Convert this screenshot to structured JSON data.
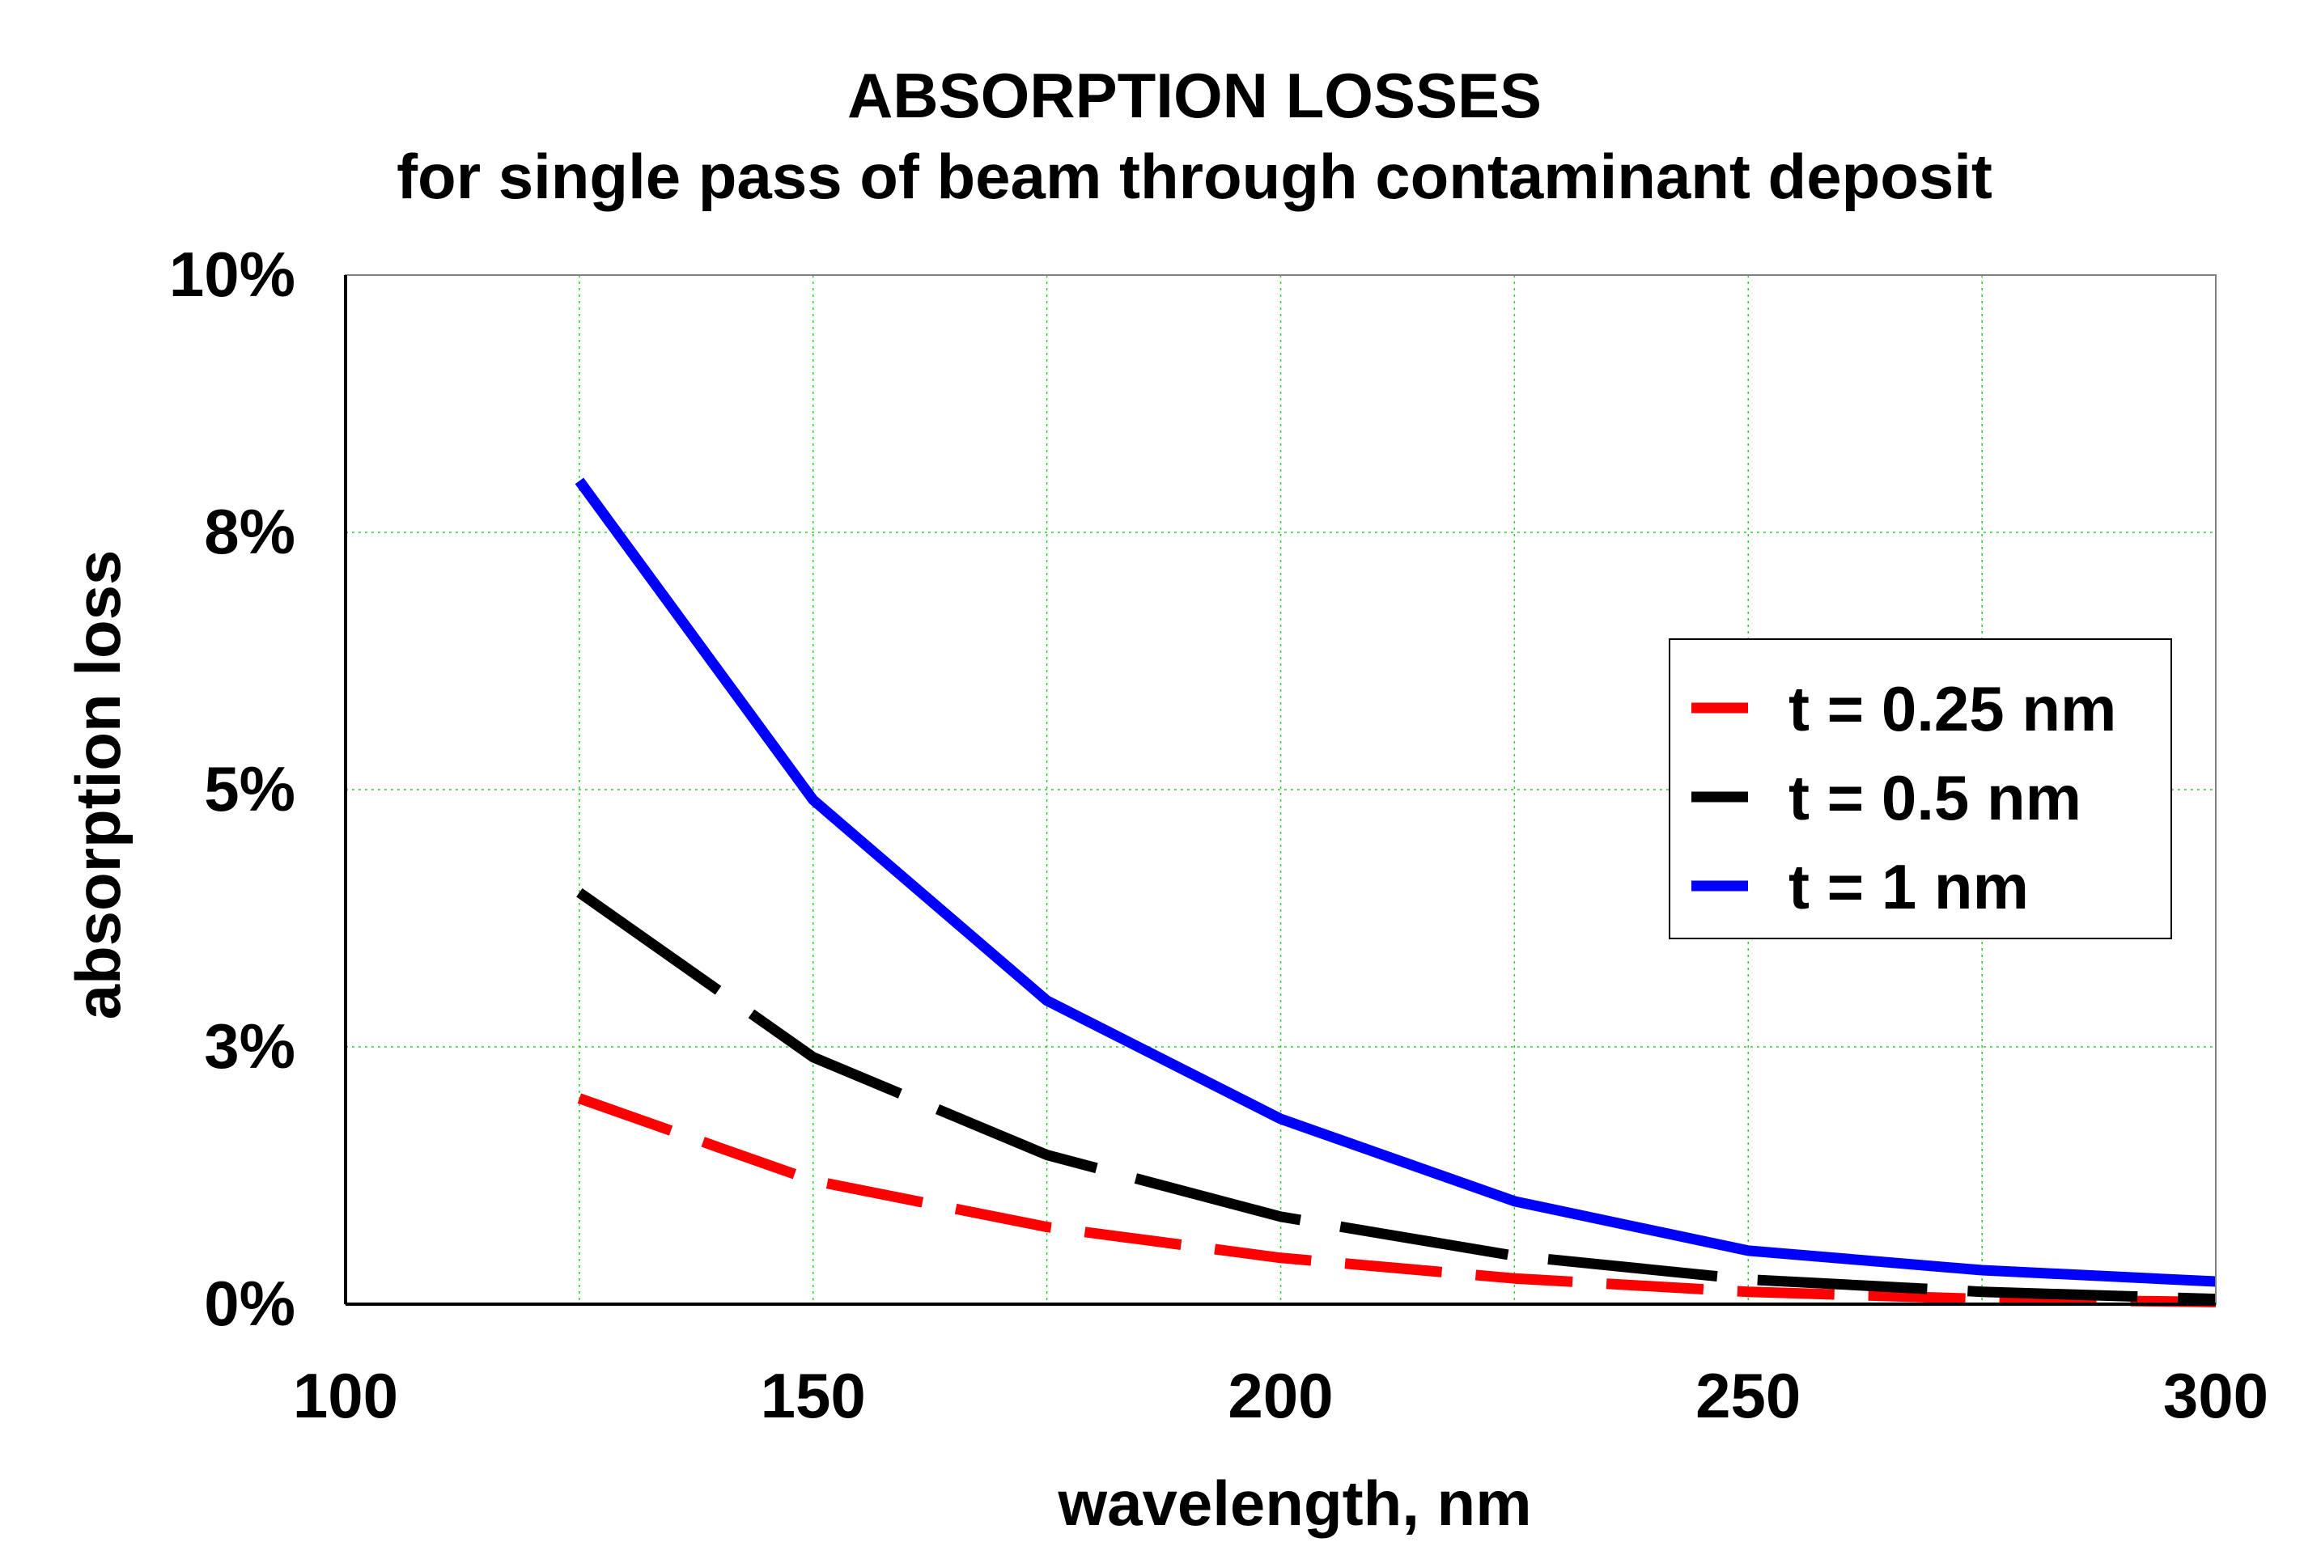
{
  "chart_data": {
    "type": "line",
    "title": "ABSORPTION LOSSES",
    "subtitle": "for single pass of beam through contaminant deposit",
    "xlabel": "wavelength, nm",
    "ylabel": "absorption loss",
    "xlim": [
      100,
      300
    ],
    "ylim": [
      0,
      10
    ],
    "x_ticks": [
      100,
      150,
      200,
      250,
      300
    ],
    "x_tick_labels": [
      "100",
      "150",
      "200",
      "250",
      "300"
    ],
    "y_ticks": [
      0,
      2.5,
      5,
      7.5,
      10
    ],
    "y_tick_labels": [
      "0%",
      "3%",
      "5%",
      "8%",
      "10%"
    ],
    "grid": true,
    "legend_position": "right",
    "x": [
      125,
      150,
      175,
      200,
      225,
      250,
      275,
      300
    ],
    "series": [
      {
        "name": "t = 0.25 nm",
        "color": "#ff0000",
        "style": "dashed",
        "values": [
          2.0,
          1.2,
          0.75,
          0.45,
          0.25,
          0.12,
          0.05,
          0.02
        ]
      },
      {
        "name": "t = 0.5 nm",
        "color": "#000000",
        "style": "dashed",
        "values": [
          4.0,
          2.4,
          1.45,
          0.85,
          0.47,
          0.24,
          0.12,
          0.05
        ]
      },
      {
        "name": "t = 1 nm",
        "color": "#0000ff",
        "style": "solid",
        "values": [
          8.0,
          4.9,
          2.95,
          1.8,
          1.0,
          0.52,
          0.33,
          0.22
        ]
      }
    ]
  }
}
